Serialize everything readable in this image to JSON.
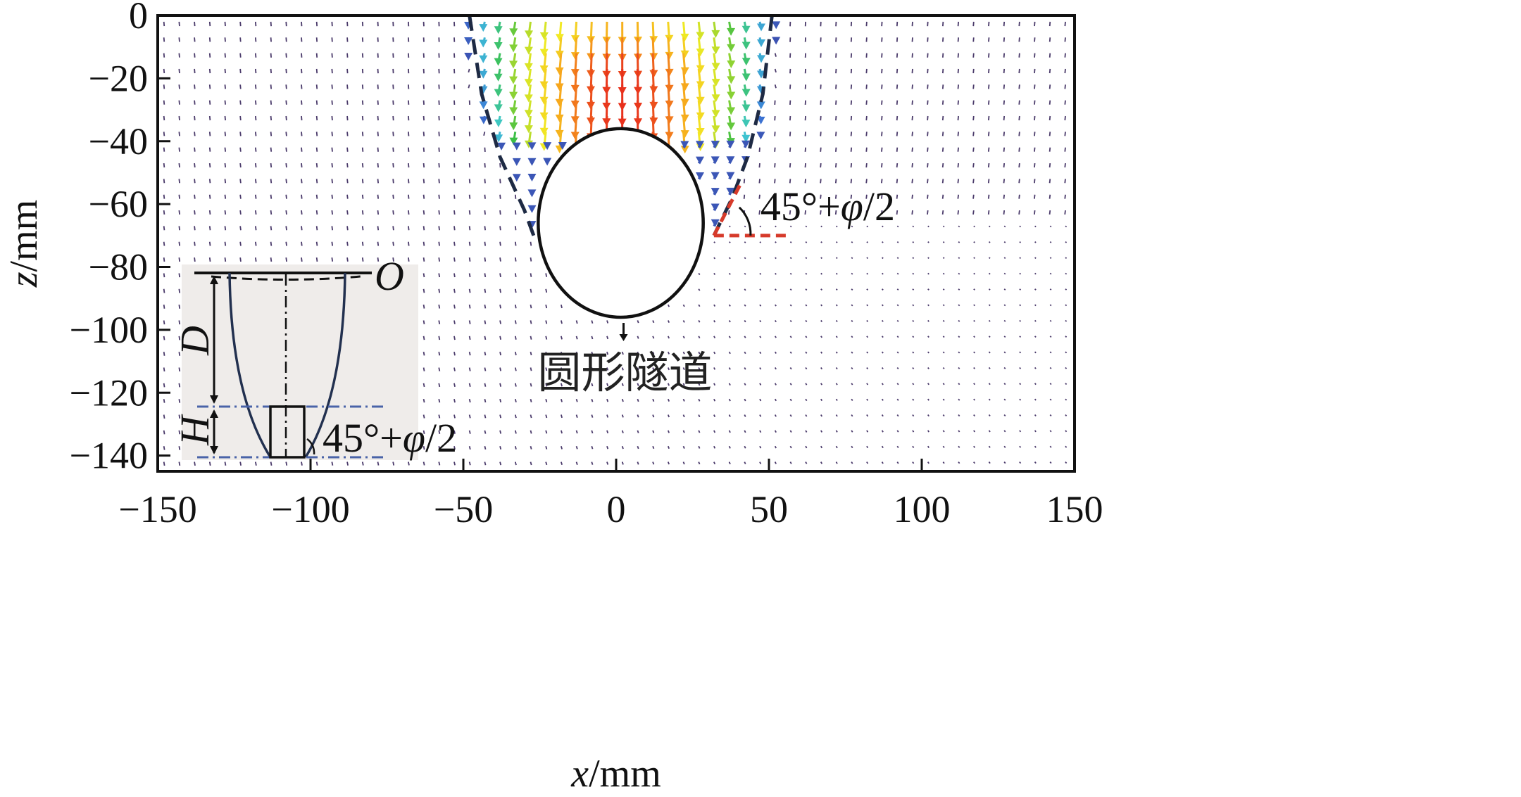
{
  "chart_data": {
    "type": "vector-field",
    "title": "",
    "xlabel": {
      "var": "x",
      "unit": "/mm"
    },
    "ylabel": {
      "var": "z",
      "unit": "/mm"
    },
    "xlim": [
      -150,
      150
    ],
    "ylim": [
      -145,
      0
    ],
    "xticks": [
      -150,
      -100,
      -50,
      0,
      50,
      100,
      150
    ],
    "yticks": [
      0,
      -20,
      -40,
      -60,
      -80,
      -100,
      -120,
      -140
    ],
    "xtick_labels": [
      "−150",
      "−100",
      "−50",
      "0",
      "50",
      "100",
      "150"
    ],
    "ytick_labels": [
      "0",
      "−20",
      "−40",
      "−60",
      "−80",
      "−100",
      "−120",
      "−140"
    ],
    "grid": false,
    "tunnel": {
      "center_x": 1.5,
      "center_z": -66,
      "radius_x": 27,
      "radius_z": 30
    },
    "tunnel_label": "圆形隧道",
    "failure_boundary_left": [
      [
        -48,
        0
      ],
      [
        -44,
        -25
      ],
      [
        -38,
        -45
      ],
      [
        -30,
        -62
      ],
      [
        -27,
        -70
      ]
    ],
    "failure_boundary_right": [
      [
        51,
        0
      ],
      [
        48,
        -25
      ],
      [
        43,
        -45
      ],
      [
        38,
        -58
      ],
      [
        32,
        -70
      ]
    ],
    "angle_annotation": "45°+φ/2",
    "color_scale": [
      "#3a2a8a",
      "#3b78d8",
      "#3ec8d0",
      "#3cbf46",
      "#b7dc2a",
      "#f2ea24",
      "#f7a21c",
      "#e8301c"
    ],
    "inset": {
      "origin_label": "O",
      "depth_label": "D",
      "height_label": "H",
      "angle_label": "45°+φ/2"
    }
  }
}
